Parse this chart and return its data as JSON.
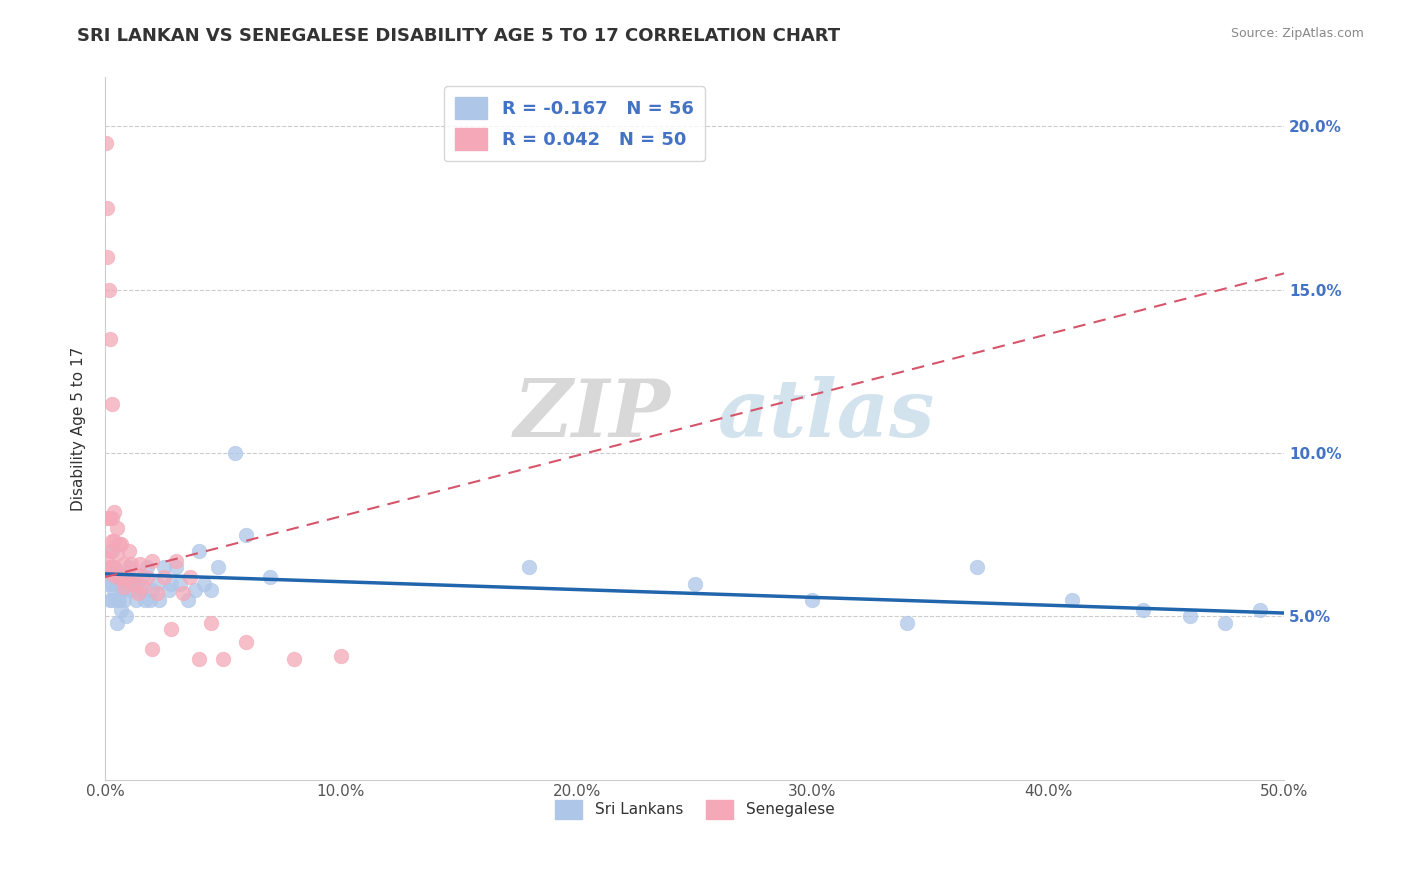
{
  "title": "SRI LANKAN VS SENEGALESE DISABILITY AGE 5 TO 17 CORRELATION CHART",
  "source": "Source: ZipAtlas.com",
  "xlabel": "",
  "ylabel": "Disability Age 5 to 17",
  "xlim": [
    0.0,
    0.5
  ],
  "ylim": [
    0.0,
    0.215
  ],
  "xticks": [
    0.0,
    0.1,
    0.2,
    0.3,
    0.4,
    0.5
  ],
  "xtick_labels": [
    "0.0%",
    "10.0%",
    "20.0%",
    "30.0%",
    "40.0%",
    "50.0%"
  ],
  "yticks": [
    0.05,
    0.1,
    0.15,
    0.2
  ],
  "ytick_labels": [
    "5.0%",
    "10.0%",
    "15.0%",
    "20.0%"
  ],
  "sri_lankan_color": "#aec6e8",
  "senegalese_color": "#f4a8b8",
  "sri_lankan_line_color": "#2166ac",
  "senegalese_line_color": "#d6556a",
  "sri_lankan_R": -0.167,
  "sri_lankan_N": 56,
  "senegalese_R": 0.042,
  "senegalese_N": 50,
  "watermark_zip": "ZIP",
  "watermark_atlas": "atlas",
  "legend_label_1": "Sri Lankans",
  "legend_label_2": "Senegalese",
  "sri_lankans_x": [
    0.001,
    0.002,
    0.002,
    0.003,
    0.003,
    0.003,
    0.004,
    0.004,
    0.005,
    0.005,
    0.005,
    0.006,
    0.006,
    0.007,
    0.007,
    0.008,
    0.008,
    0.009,
    0.01,
    0.01,
    0.011,
    0.012,
    0.013,
    0.013,
    0.015,
    0.016,
    0.017,
    0.018,
    0.019,
    0.02,
    0.022,
    0.023,
    0.025,
    0.027,
    0.028,
    0.03,
    0.032,
    0.035,
    0.038,
    0.04,
    0.042,
    0.045,
    0.048,
    0.055,
    0.06,
    0.07,
    0.18,
    0.25,
    0.3,
    0.34,
    0.37,
    0.41,
    0.44,
    0.46,
    0.475,
    0.49
  ],
  "sri_lankans_y": [
    0.06,
    0.065,
    0.055,
    0.07,
    0.06,
    0.055,
    0.065,
    0.058,
    0.062,
    0.055,
    0.048,
    0.06,
    0.055,
    0.058,
    0.052,
    0.06,
    0.055,
    0.05,
    0.065,
    0.058,
    0.06,
    0.058,
    0.06,
    0.055,
    0.058,
    0.062,
    0.055,
    0.065,
    0.055,
    0.058,
    0.06,
    0.055,
    0.065,
    0.058,
    0.06,
    0.065,
    0.06,
    0.055,
    0.058,
    0.07,
    0.06,
    0.058,
    0.065,
    0.1,
    0.075,
    0.062,
    0.065,
    0.06,
    0.055,
    0.048,
    0.065,
    0.055,
    0.052,
    0.05,
    0.048,
    0.052
  ],
  "senegalese_x": [
    0.0005,
    0.001,
    0.001,
    0.001,
    0.001,
    0.0015,
    0.002,
    0.002,
    0.002,
    0.002,
    0.003,
    0.003,
    0.003,
    0.003,
    0.004,
    0.004,
    0.004,
    0.005,
    0.005,
    0.005,
    0.006,
    0.006,
    0.007,
    0.007,
    0.008,
    0.008,
    0.009,
    0.01,
    0.01,
    0.011,
    0.012,
    0.013,
    0.014,
    0.015,
    0.016,
    0.018,
    0.02,
    0.022,
    0.025,
    0.028,
    0.03,
    0.033,
    0.036,
    0.04,
    0.045,
    0.05,
    0.06,
    0.08,
    0.1,
    0.02
  ],
  "senegalese_y": [
    0.195,
    0.175,
    0.16,
    0.08,
    0.068,
    0.15,
    0.135,
    0.08,
    0.07,
    0.065,
    0.115,
    0.08,
    0.073,
    0.063,
    0.082,
    0.073,
    0.065,
    0.077,
    0.069,
    0.062,
    0.072,
    0.063,
    0.072,
    0.062,
    0.066,
    0.059,
    0.061,
    0.07,
    0.062,
    0.066,
    0.06,
    0.063,
    0.057,
    0.066,
    0.059,
    0.062,
    0.067,
    0.057,
    0.062,
    0.046,
    0.067,
    0.057,
    0.062,
    0.037,
    0.048,
    0.037,
    0.042,
    0.037,
    0.038,
    0.04
  ],
  "sl_trend_x0": 0.0,
  "sl_trend_x1": 0.5,
  "sl_trend_y0": 0.063,
  "sl_trend_y1": 0.051,
  "sn_trend_x0": 0.0,
  "sn_trend_x1": 0.5,
  "sn_trend_y0": 0.062,
  "sn_trend_y1": 0.155
}
